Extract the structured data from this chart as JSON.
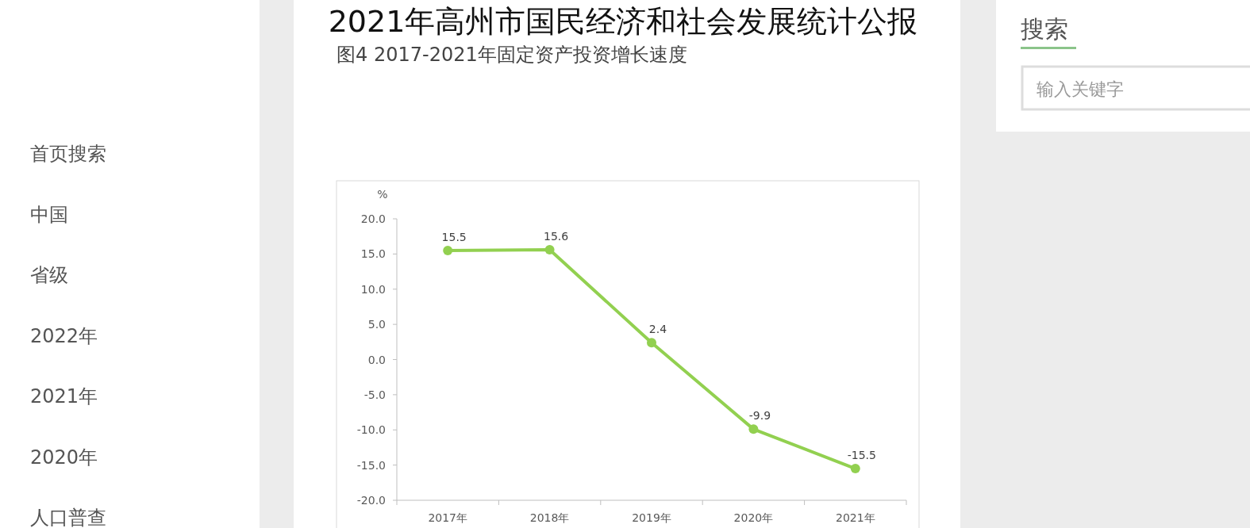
{
  "chart_data": {
    "type": "line",
    "title": "2021年高州市国民经济和社会发展统计公报",
    "subtitle": "图4 2017-2021年固定资产投资增长速度",
    "ylabel": "%",
    "categories": [
      "2017年",
      "2018年",
      "2019年",
      "2020年",
      "2021年"
    ],
    "series": [
      {
        "color": "#92d050",
        "values": [
          15.5,
          15.6,
          2.4,
          -9.9,
          -15.5
        ]
      }
    ],
    "ylim": [
      -20,
      20
    ],
    "yticks": [
      {
        "value": -20,
        "label": "-20.0"
      },
      {
        "value": -15,
        "label": "-15.0"
      },
      {
        "value": -10,
        "label": "-10.0"
      },
      {
        "value": -5,
        "label": "-5.0"
      },
      {
        "value": 0,
        "label": "0.0"
      },
      {
        "value": 5,
        "label": "5.0"
      },
      {
        "value": 10,
        "label": "10.0"
      },
      {
        "value": 15,
        "label": "15.0"
      },
      {
        "value": 20,
        "label": "20.0"
      }
    ],
    "data_labels": true,
    "marker": "circle",
    "annotations": [
      "首页搜索",
      "中国",
      "省级",
      "2022年",
      "2021年",
      "2020年",
      "人口普查",
      "搜索",
      "输入关键字"
    ]
  }
}
